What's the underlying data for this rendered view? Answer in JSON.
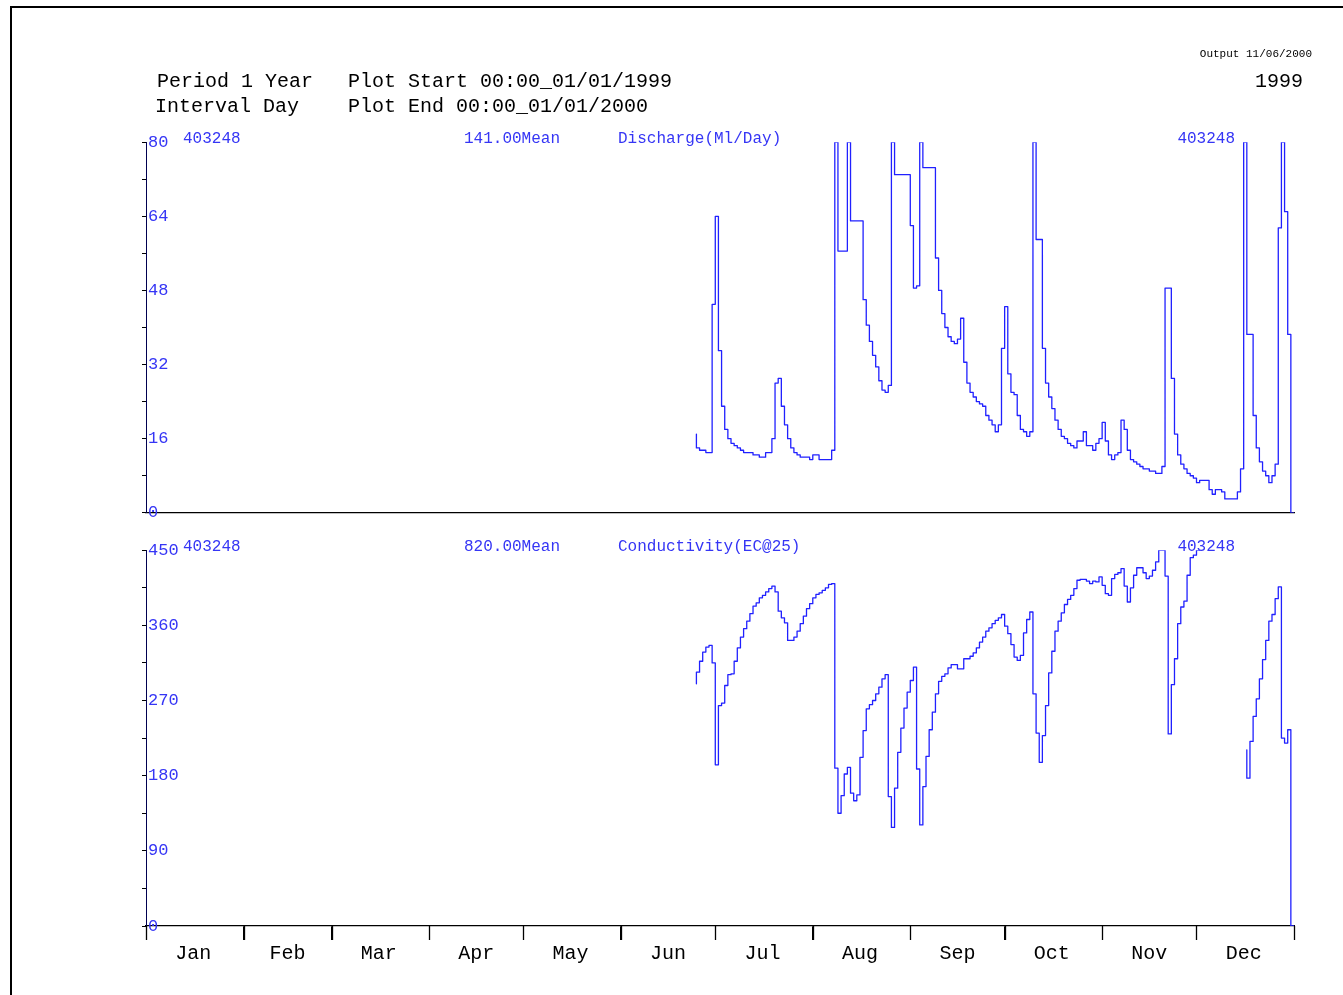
{
  "chart_data": [
    {
      "type": "step",
      "ylabel": "Discharge(Ml/Day)",
      "annotations": [
        "Period 1 Year",
        "Plot Start 00:00_01/01/1999",
        "Interval Day",
        "Plot End 00:00_01/01/2000",
        "Output 11/06/2000",
        "1999",
        "403248",
        "141.00Mean",
        "403248"
      ],
      "xlim": [
        "1999-01-01",
        "2000-01-01"
      ],
      "ylim": [
        0,
        80
      ],
      "yticks": [
        0,
        {
          "value": 8,
          "label": null
        },
        16,
        {
          "value": 24,
          "label": null
        },
        32,
        {
          "value": 40,
          "label": null
        },
        48,
        {
          "value": 56,
          "label": null
        },
        64,
        {
          "value": 72,
          "label": null
        },
        80
      ],
      "tick_labels": "y",
      "grid": false,
      "legend": false,
      "series": [
        {
          "color": "#2020ff",
          "x": [
            "1999-06-25",
            "1999-06-26",
            "1999-06-27",
            "1999-06-28",
            "1999-06-29",
            "1999-06-30",
            "1999-07-01",
            "1999-07-02",
            "1999-07-03",
            "1999-07-04",
            "1999-07-05",
            "1999-07-06",
            "1999-07-07",
            "1999-07-08",
            "1999-07-09",
            "1999-07-10",
            "1999-07-11",
            "1999-07-12",
            "1999-07-13",
            "1999-07-14",
            "1999-07-15",
            "1999-07-16",
            "1999-07-17",
            "1999-07-19",
            "1999-07-20",
            "1999-07-21",
            "1999-07-22",
            "1999-07-23",
            "1999-07-24",
            "1999-07-25",
            "1999-07-26",
            "1999-07-27",
            "1999-07-28",
            "1999-07-29",
            "1999-07-31",
            "1999-08-01",
            "1999-08-03",
            "1999-08-05",
            "1999-08-07",
            "1999-08-08",
            "1999-08-09",
            "1999-08-12",
            "1999-08-13",
            "1999-08-17",
            "1999-08-18",
            "1999-08-19",
            "1999-08-20",
            "1999-08-21",
            "1999-08-22",
            "1999-08-23",
            "1999-08-24",
            "1999-08-25",
            "1999-08-26",
            "1999-08-27",
            "1999-09-01",
            "1999-09-02",
            "1999-09-03",
            "1999-09-04",
            "1999-09-05",
            "1999-09-09",
            "1999-09-10",
            "1999-09-11",
            "1999-09-12",
            "1999-09-13",
            "1999-09-14",
            "1999-09-15",
            "1999-09-16",
            "1999-09-17",
            "1999-09-18",
            "1999-09-19",
            "1999-09-20",
            "1999-09-21",
            "1999-09-22",
            "1999-09-23",
            "1999-09-24",
            "1999-09-25",
            "1999-09-26",
            "1999-09-27",
            "1999-09-28",
            "1999-09-29",
            "1999-09-30",
            "1999-10-01",
            "1999-10-02",
            "1999-10-03",
            "1999-10-04",
            "1999-10-05",
            "1999-10-06",
            "1999-10-07",
            "1999-10-08",
            "1999-10-09",
            "1999-10-10",
            "1999-10-11",
            "1999-10-13",
            "1999-10-14",
            "1999-10-15",
            "1999-10-16",
            "1999-10-17",
            "1999-10-18",
            "1999-10-19",
            "1999-10-20",
            "1999-10-21",
            "1999-10-22",
            "1999-10-23",
            "1999-10-24",
            "1999-10-26",
            "1999-10-27",
            "1999-10-28",
            "1999-10-29",
            "1999-10-30",
            "1999-10-31",
            "1999-11-01",
            "1999-11-02",
            "1999-11-03",
            "1999-11-04",
            "1999-11-05",
            "1999-11-06",
            "1999-11-07",
            "1999-11-08",
            "1999-11-09",
            "1999-11-10",
            "1999-11-11",
            "1999-11-12",
            "1999-11-13",
            "1999-11-14",
            "1999-11-15",
            "1999-11-16",
            "1999-11-17",
            "1999-11-18",
            "1999-11-20",
            "1999-11-21",
            "1999-11-22",
            "1999-11-23",
            "1999-11-24",
            "1999-11-25",
            "1999-11-26",
            "1999-11-27",
            "1999-11-28",
            "1999-11-29",
            "1999-11-30",
            "1999-12-01",
            "1999-12-02",
            "1999-12-04",
            "1999-12-05",
            "1999-12-06",
            "1999-12-07",
            "1999-12-08",
            "1999-12-09",
            "1999-12-10",
            "1999-12-11",
            "1999-12-13",
            "1999-12-14",
            "1999-12-15",
            "1999-12-16",
            "1999-12-17",
            "1999-12-19",
            "1999-12-20",
            "1999-12-21",
            "1999-12-22",
            "1999-12-23",
            "1999-12-24",
            "1999-12-25",
            "1999-12-26",
            "1999-12-27",
            "1999-12-28",
            "1999-12-29",
            "1999-12-30",
            "1999-12-31",
            "2000-01-01"
          ],
          "values": [
            17,
            14,
            13.5,
            13.5,
            13,
            13,
            45,
            64,
            35,
            23,
            18,
            16,
            15,
            14.5,
            14,
            13.5,
            13,
            13,
            13,
            12.5,
            12.5,
            12,
            12,
            13,
            16,
            28,
            29,
            23,
            19,
            16,
            14,
            13,
            12.5,
            12,
            12,
            11.5,
            12.5,
            11.5,
            11.5,
            13.5,
            80,
            56.5,
            80,
            63,
            46,
            40.5,
            37,
            34,
            31.5,
            28.5,
            26.5,
            26,
            27.5,
            80,
            73,
            62,
            48.5,
            49,
            80,
            74.5,
            55,
            48,
            43,
            40,
            38,
            37,
            36.5,
            37.5,
            42,
            32.5,
            28,
            26,
            25,
            24,
            23.5,
            23,
            21,
            20,
            19,
            17.5,
            19,
            35.5,
            44.5,
            30,
            26,
            25.5,
            21,
            18,
            17.5,
            16.5,
            17.5,
            80,
            59,
            35.5,
            28,
            25,
            22.5,
            20,
            18,
            16.5,
            16,
            15,
            14.5,
            14,
            15.5,
            17.5,
            14.5,
            14.5,
            13.5,
            15,
            16,
            19.5,
            15.5,
            12.5,
            11.5,
            12.5,
            13,
            20,
            18,
            13.5,
            11.5,
            11,
            10.5,
            10,
            9.5,
            9.5,
            9,
            9,
            8.5,
            10,
            48.5,
            48.5,
            29,
            17,
            12.5,
            10.5,
            9.5,
            8.5,
            8,
            7.5,
            6.5,
            7,
            7,
            5,
            4,
            5,
            5,
            4.5,
            3,
            3,
            3,
            4.5,
            9.5,
            80,
            38.5,
            21,
            14,
            11,
            9,
            8,
            6.5,
            8,
            10.5,
            61.5,
            80,
            65,
            38.5,
            0
          ]
        }
      ]
    },
    {
      "type": "step",
      "ylabel": "Conductivity(EC@25)",
      "annotations": [
        "403248",
        "820.00Mean",
        "403248"
      ],
      "xlim": [
        "1999-01-01",
        "2000-01-01"
      ],
      "ylim": [
        0,
        450
      ],
      "xticks": [
        {
          "value": "1999-01-01",
          "label": null
        },
        {
          "value": "1999-01-16",
          "label": "Jan"
        },
        {
          "value": "1999-02-01",
          "label": null
        },
        {
          "value": "1999-02-15",
          "label": "Feb"
        },
        {
          "value": "1999-03-01",
          "label": null
        },
        {
          "value": "1999-03-16",
          "label": "Mar"
        },
        {
          "value": "1999-04-01",
          "label": null
        },
        {
          "value": "1999-04-16",
          "label": "Apr"
        },
        {
          "value": "1999-05-01",
          "label": null
        },
        {
          "value": "1999-05-16",
          "label": "May"
        },
        {
          "value": "1999-06-01",
          "label": null
        },
        {
          "value": "1999-06-16",
          "label": "Jun"
        },
        {
          "value": "1999-07-01",
          "label": null
        },
        {
          "value": "1999-07-16",
          "label": "Jul"
        },
        {
          "value": "1999-08-01",
          "label": null
        },
        {
          "value": "1999-08-16",
          "label": "Aug"
        },
        {
          "value": "1999-09-01",
          "label": null
        },
        {
          "value": "1999-09-16",
          "label": "Sep"
        },
        {
          "value": "1999-10-01",
          "label": null
        },
        {
          "value": "1999-10-16",
          "label": "Oct"
        },
        {
          "value": "1999-11-01",
          "label": null
        },
        {
          "value": "1999-11-16",
          "label": "Nov"
        },
        {
          "value": "1999-12-01",
          "label": null
        },
        {
          "value": "1999-12-16",
          "label": "Dec"
        },
        {
          "value": "2000-01-01",
          "label": null
        }
      ],
      "yticks": [
        0,
        {
          "value": 45,
          "label": null
        },
        90,
        {
          "value": 135,
          "label": null
        },
        180,
        {
          "value": 225,
          "label": null
        },
        270,
        {
          "value": 315,
          "label": null
        },
        360,
        {
          "value": 405,
          "label": null
        },
        450
      ],
      "grid": false,
      "legend": false,
      "series": [
        {
          "color": "#2020ff",
          "x": [
            "1999-06-25",
            "1999-06-26",
            "1999-06-27",
            "1999-06-28",
            "1999-06-29",
            "1999-06-30",
            "1999-07-01",
            "1999-07-02",
            "1999-07-03",
            "1999-07-04",
            "1999-07-05",
            "1999-07-06",
            "1999-07-07",
            "1999-07-08",
            "1999-07-09",
            "1999-07-10",
            "1999-07-11",
            "1999-07-12",
            "1999-07-13",
            "1999-07-14",
            "1999-07-15",
            "1999-07-16",
            "1999-07-17",
            "1999-07-18",
            "1999-07-19",
            "1999-07-20",
            "1999-07-21",
            "1999-07-22",
            "1999-07-23",
            "1999-07-24",
            "1999-07-25",
            "1999-07-26",
            "1999-07-27",
            "1999-07-28",
            "1999-07-29",
            "1999-07-30",
            "1999-07-31",
            "1999-08-01",
            "1999-08-02",
            "1999-08-03",
            "1999-08-04",
            "1999-08-05",
            "1999-08-06",
            "1999-08-07",
            "1999-08-08",
            "1999-08-09",
            "1999-08-10",
            "1999-08-11",
            "1999-08-12",
            "1999-08-13",
            "1999-08-14",
            "1999-08-15",
            "1999-08-16",
            "1999-08-17",
            "1999-08-18",
            "1999-08-19",
            "1999-08-20",
            "1999-08-21",
            "1999-08-22",
            "1999-08-23",
            "1999-08-24",
            "1999-08-25",
            "1999-08-26",
            "1999-08-27",
            "1999-08-28",
            "1999-08-29",
            "1999-08-30",
            "1999-08-31",
            "1999-09-01",
            "1999-09-02",
            "1999-09-03",
            "1999-09-04",
            "1999-09-05",
            "1999-09-06",
            "1999-09-07",
            "1999-09-08",
            "1999-09-09",
            "1999-09-10",
            "1999-09-11",
            "1999-09-12",
            "1999-09-13",
            "1999-09-14",
            "1999-09-15",
            "1999-09-16",
            "1999-09-17",
            "1999-09-18",
            "1999-09-19",
            "1999-09-20",
            "1999-09-21",
            "1999-09-22",
            "1999-09-23",
            "1999-09-24",
            "1999-09-25",
            "1999-09-26",
            "1999-09-27",
            "1999-09-28",
            "1999-09-29",
            "1999-09-30",
            "1999-10-01",
            "1999-10-02",
            "1999-10-03",
            "1999-10-04",
            "1999-10-05",
            "1999-10-06",
            "1999-10-07",
            "1999-10-08",
            "1999-10-09",
            "1999-10-10",
            "1999-10-11",
            "1999-10-12",
            "1999-10-13",
            "1999-10-14",
            "1999-10-15",
            "1999-10-16",
            "1999-10-17",
            "1999-10-18",
            "1999-10-19",
            "1999-10-20",
            "1999-10-21",
            "1999-10-22",
            "1999-10-23",
            "1999-10-24",
            "1999-10-25",
            "1999-10-26",
            "1999-10-27",
            "1999-10-28",
            "1999-10-29",
            "1999-10-30",
            "1999-10-31",
            "1999-11-01",
            "1999-11-02",
            "1999-11-03",
            "1999-11-04",
            "1999-11-05",
            "1999-11-06",
            "1999-11-07",
            "1999-11-08",
            "1999-11-09",
            "1999-11-10",
            "1999-11-11",
            "1999-11-12",
            "1999-11-13",
            "1999-11-14",
            "1999-11-15",
            "1999-11-16",
            "1999-11-17",
            "1999-11-18",
            "1999-11-19",
            "1999-11-20",
            "1999-11-21",
            "1999-11-22",
            "1999-11-23",
            "1999-11-24",
            "1999-11-25",
            "1999-11-26",
            "1999-11-27",
            "1999-11-28",
            "1999-11-29",
            "1999-11-30",
            "1999-12-01",
            "1999-12-02",
            "1999-12-03",
            "1999-12-17",
            "1999-12-18",
            "1999-12-19",
            "1999-12-20",
            "1999-12-21",
            "1999-12-22",
            "1999-12-23",
            "1999-12-24",
            "1999-12-25",
            "1999-12-26",
            "1999-12-27",
            "1999-12-28",
            "1999-12-29",
            "1999-12-30",
            "1999-12-31",
            "2000-01-01"
          ],
          "values": [
            290,
            304,
            317,
            328,
            334,
            336,
            315,
            193,
            264,
            267,
            288,
            301,
            302,
            317,
            333,
            346,
            356,
            365,
            374,
            383,
            387,
            393,
            396,
            400,
            404,
            407,
            400,
            377,
            369,
            363,
            342,
            342,
            346,
            353,
            362,
            371,
            380,
            386,
            393,
            397,
            399,
            402,
            405,
            409,
            410,
            189,
            135,
            156,
            182,
            190,
            159,
            150,
            157,
            202,
            234,
            260,
            265,
            270,
            278,
            286,
            296,
            301,
            155,
            118,
            165,
            208,
            237,
            261,
            280,
            294,
            310,
            188,
            121,
            167,
            203,
            235,
            256,
            278,
            293,
            299,
            302,
            309,
            313,
            313,
            308,
            308,
            320,
            320,
            323,
            327,
            333,
            340,
            346,
            353,
            357,
            362,
            366,
            369,
            373,
            359,
            350,
            337,
            322,
            318,
            324,
            351,
            367,
            376,
            278,
            231,
            196,
            228,
            264,
            303,
            329,
            353,
            365,
            375,
            385,
            391,
            396,
            404,
            414,
            415,
            415,
            413,
            410,
            413,
            412,
            418,
            408,
            398,
            396,
            416,
            421,
            423,
            428,
            407,
            388,
            405,
            420,
            429,
            429,
            423,
            416,
            419,
            426,
            436,
            450,
            450,
            419,
            230,
            289,
            320,
            362,
            382,
            389,
            420,
            441,
            444,
            450,
            null,
            211,
            177,
            221,
            251,
            272,
            296,
            319,
            342,
            365,
            373,
            392,
            406,
            225,
            219,
            235,
            0
          ]
        }
      ]
    }
  ]
}
